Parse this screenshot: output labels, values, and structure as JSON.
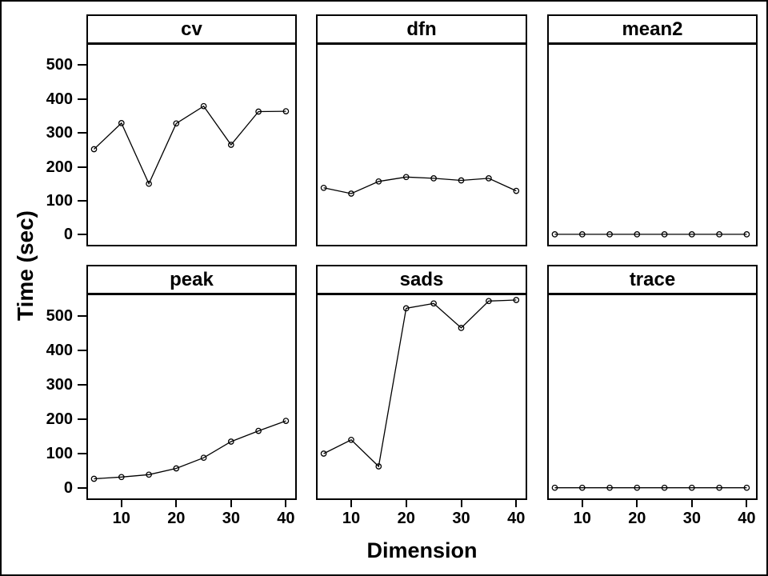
{
  "figure": {
    "background": "#ffffff",
    "frame_color": "#000000"
  },
  "chart_data": {
    "type": "line",
    "layout": "trellis-2x3",
    "title": "",
    "xlabel": "Dimension",
    "ylabel": "Time (sec)",
    "x": [
      5,
      10,
      15,
      20,
      25,
      30,
      35,
      40
    ],
    "x_ticks": [
      10,
      20,
      30,
      40
    ],
    "y_ticks": [
      0,
      100,
      200,
      300,
      400,
      500
    ],
    "xlim": [
      3.9,
      41.7
    ],
    "ylim": [
      -30,
      560
    ],
    "grid": false,
    "legend": "none",
    "line_color": "#000000",
    "marker": "open-circle",
    "panels": [
      {
        "title": "cv",
        "values": [
          252,
          329,
          150,
          328,
          379,
          265,
          363,
          364
        ]
      },
      {
        "title": "dfn",
        "values": [
          138,
          121,
          157,
          170,
          166,
          160,
          166,
          129
        ]
      },
      {
        "title": "mean2",
        "values": [
          1,
          1,
          1,
          1,
          1,
          1,
          1,
          1
        ]
      },
      {
        "title": "peak",
        "values": [
          27,
          32,
          39,
          57,
          88,
          135,
          166,
          195
        ]
      },
      {
        "title": "sads",
        "values": [
          100,
          140,
          63,
          522,
          536,
          465,
          543,
          546
        ]
      },
      {
        "title": "trace",
        "values": [
          1,
          1,
          1,
          1,
          1,
          1,
          1,
          1
        ]
      }
    ]
  }
}
